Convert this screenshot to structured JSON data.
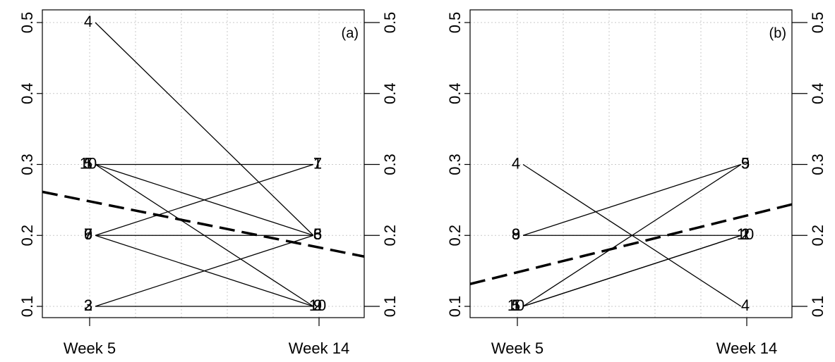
{
  "chart_data": [
    {
      "type": "line",
      "panel": "(a)",
      "categories": [
        "Week 5",
        "Week 14"
      ],
      "ylim": [
        0.08,
        0.52
      ],
      "yticks": [
        "0.1",
        "0.2",
        "0.3",
        "0.4",
        "0.5"
      ],
      "yticks_right": [
        "0.1",
        "0.2",
        "0.3",
        "0.4",
        "0.5"
      ],
      "grid": true,
      "series": [
        {
          "label_week5": "4",
          "label_week14": "6",
          "values": [
            0.5,
            0.2
          ]
        },
        {
          "label_week5": "10",
          "label_week14": "7",
          "values": [
            0.3,
            0.3
          ]
        },
        {
          "label_week5": "5",
          "label_week14": "8",
          "values": [
            0.3,
            0.2
          ]
        },
        {
          "label_week5": "1",
          "label_week14": "9",
          "values": [
            0.3,
            0.1
          ]
        },
        {
          "label_week5": "7",
          "label_week14": "1",
          "values": [
            0.2,
            0.3
          ]
        },
        {
          "label_week5": "6",
          "label_week14": "5",
          "values": [
            0.2,
            0.2
          ]
        },
        {
          "label_week5": "9",
          "label_week14": "10",
          "values": [
            0.2,
            0.1
          ]
        },
        {
          "label_week5": "3",
          "label_week14": "3",
          "values": [
            0.1,
            0.2
          ]
        },
        {
          "label_week5": "2",
          "label_week14": "2",
          "values": [
            0.1,
            0.1
          ]
        }
      ],
      "trend": {
        "values": [
          0.248,
          0.183
        ]
      }
    },
    {
      "type": "line",
      "panel": "(b)",
      "categories": [
        "Week 5",
        "Week 14"
      ],
      "ylim": [
        0.08,
        0.52
      ],
      "yticks": [
        "0.1",
        "0.2",
        "0.3",
        "0.4",
        "0.5"
      ],
      "yticks_right": [
        "0.1",
        "0.2",
        "0.3",
        "0.4",
        "0.5"
      ],
      "grid": true,
      "series": [
        {
          "label_week5": "4",
          "label_week14": "4",
          "values": [
            0.3,
            0.1
          ]
        },
        {
          "label_week5": "9",
          "label_week14": "9",
          "values": [
            0.2,
            0.3
          ]
        },
        {
          "label_week5": "8",
          "label_week14": "2",
          "values": [
            0.2,
            0.2
          ]
        },
        {
          "label_week5": "5",
          "label_week14": "5",
          "values": [
            0.1,
            0.3
          ]
        },
        {
          "label_week5": "10",
          "label_week14": "10",
          "values": [
            0.1,
            0.2
          ]
        },
        {
          "label_week5": "1",
          "label_week14": "1",
          "values": [
            0.1,
            0.2
          ]
        }
      ],
      "trend": {
        "values": [
          0.148,
          0.228
        ]
      }
    }
  ]
}
